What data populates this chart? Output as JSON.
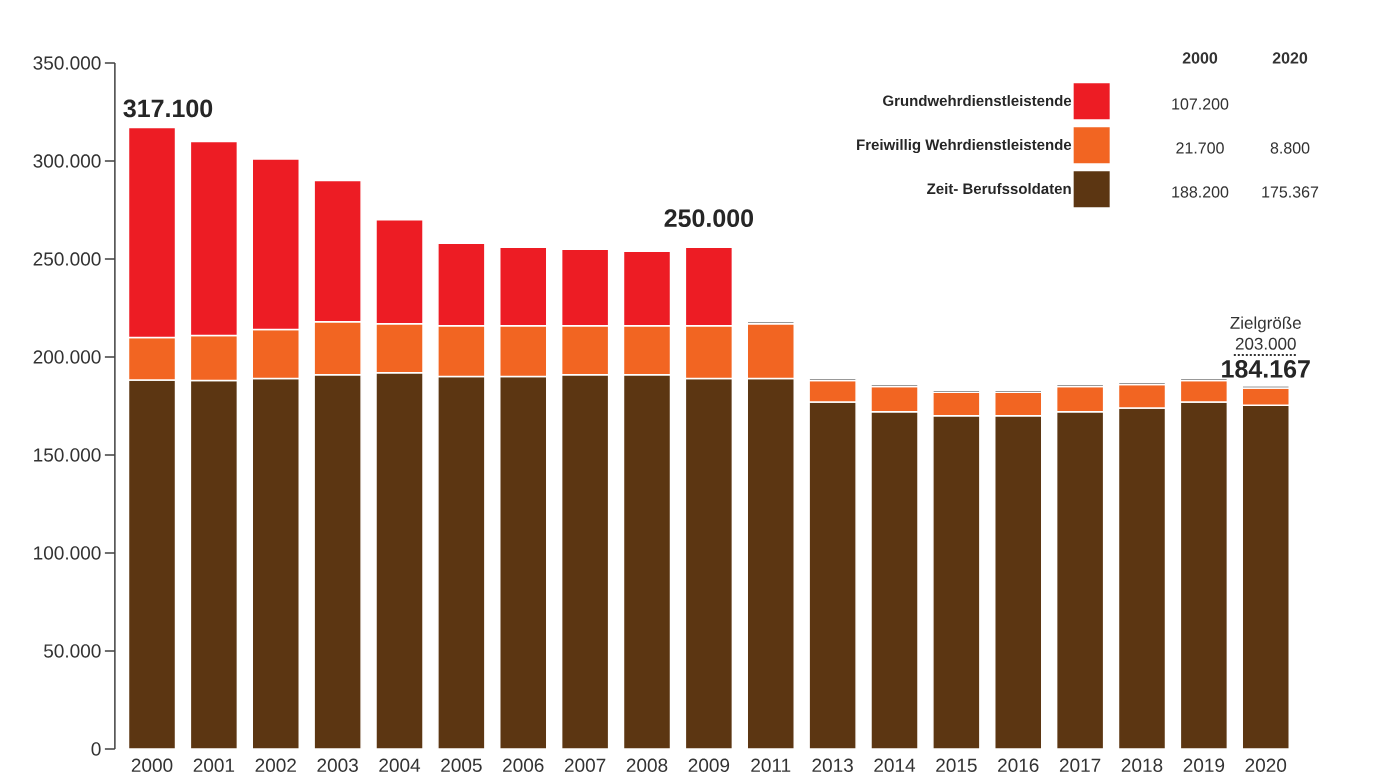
{
  "chart_data": {
    "type": "bar",
    "stacked": true,
    "legend": "top right",
    "categories": [
      "2000",
      "2001",
      "2002",
      "2003",
      "2004",
      "2005",
      "2006",
      "2007",
      "2008",
      "2009",
      "2011",
      "2013",
      "2014",
      "2015",
      "2016",
      "2017",
      "2018",
      "2019",
      "2020"
    ],
    "series": [
      {
        "name": "Zeit- Berufssoldaten",
        "color": "#5c3612",
        "values": [
          188200,
          188000,
          189000,
          191000,
          192000,
          190000,
          190000,
          191000,
          191000,
          189000,
          189000,
          177000,
          172000,
          170000,
          170000,
          172000,
          174000,
          177000,
          175367
        ]
      },
      {
        "name": "Freiwillig Wehrdienstleistende",
        "color": "#f26522",
        "values": [
          21700,
          23000,
          25000,
          27000,
          25000,
          26000,
          26000,
          25000,
          25000,
          27000,
          28000,
          11000,
          13000,
          12000,
          12000,
          13000,
          12000,
          11000,
          8800
        ]
      },
      {
        "name": "Grundwehrdienstleistende",
        "color": "#ed1c24",
        "values": [
          107200,
          99000,
          87000,
          72000,
          53000,
          42000,
          40000,
          39000,
          38000,
          40000,
          null,
          null,
          null,
          null,
          null,
          null,
          null,
          null,
          null
        ]
      },
      {
        "color": "#333333",
        "values": [
          null,
          null,
          null,
          null,
          null,
          null,
          null,
          null,
          null,
          null,
          1000,
          1000,
          1000,
          1000,
          1000,
          1000,
          1000,
          1000,
          1000
        ]
      }
    ],
    "ylim": [
      0,
      350000
    ],
    "yticks": [
      {
        "value": 0,
        "label": "0"
      },
      {
        "value": 50000,
        "label": "50.000"
      },
      {
        "value": 100000,
        "label": "100.000"
      },
      {
        "value": 150000,
        "label": "150.000"
      },
      {
        "value": 200000,
        "label": "200.000"
      },
      {
        "value": 250000,
        "label": "250.000"
      },
      {
        "value": 300000,
        "label": "300.000"
      },
      {
        "value": 350000,
        "label": "350.000"
      }
    ],
    "annotations": [
      {
        "text": "317.100",
        "x": "2000",
        "y": 317100
      },
      {
        "text": "184.167",
        "x": "2020",
        "y": 184167
      },
      "250.000",
      "203.000",
      "Zielgröße",
      "2000",
      "2020",
      "107.200",
      "21.700",
      "8.800",
      "188.200",
      "175.367"
    ]
  }
}
